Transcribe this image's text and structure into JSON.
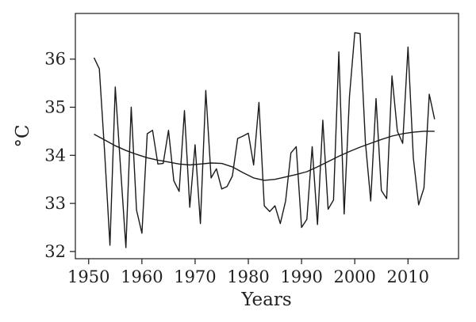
{
  "chart_data": {
    "type": "line",
    "xlabel": "Years",
    "ylabel": "°C",
    "xlim": [
      1947.5,
      2019.5
    ],
    "ylim": [
      31.85,
      36.95
    ],
    "xticks": [
      1950,
      1960,
      1970,
      1980,
      1990,
      2000,
      2010
    ],
    "yticks": [
      32,
      33,
      34,
      35,
      36
    ],
    "grid": false,
    "legend": "none",
    "colors": {
      "line": "#1a1a1a",
      "axis": "#1a1a1a"
    },
    "series": [
      {
        "x": [
          1951,
          1952,
          1953,
          1954,
          1955,
          1956,
          1957,
          1958,
          1959,
          1960,
          1961,
          1962,
          1963,
          1964,
          1965,
          1966,
          1967,
          1968,
          1969,
          1970,
          1971,
          1972,
          1973,
          1974,
          1975,
          1976,
          1977,
          1978,
          1979,
          1980,
          1981,
          1982,
          1983,
          1984,
          1985,
          1986,
          1987,
          1988,
          1989,
          1990,
          1991,
          1992,
          1993,
          1994,
          1995,
          1996,
          1997,
          1998,
          1999,
          2000,
          2001,
          2002,
          2003,
          2004,
          2005,
          2006,
          2007,
          2008,
          2009,
          2010,
          2011,
          2012,
          2013,
          2014,
          2015
        ],
        "values": [
          36.03,
          35.8,
          34.06,
          32.13,
          35.42,
          33.73,
          32.08,
          35.0,
          32.86,
          32.38,
          34.45,
          34.52,
          33.82,
          33.83,
          34.52,
          33.47,
          33.25,
          34.93,
          32.92,
          34.22,
          32.58,
          35.35,
          33.53,
          33.72,
          33.3,
          33.35,
          33.57,
          34.35,
          34.4,
          34.46,
          33.8,
          35.1,
          32.95,
          32.83,
          32.95,
          32.58,
          33.05,
          34.05,
          34.18,
          32.5,
          32.67,
          34.18,
          32.56,
          34.73,
          32.88,
          33.07,
          36.15,
          32.78,
          35.22,
          36.55,
          36.53,
          34.27,
          33.05,
          35.18,
          33.27,
          33.1,
          35.65,
          34.5,
          34.25,
          36.25,
          33.95,
          32.97,
          33.32,
          35.27,
          34.75
        ]
      },
      {
        "x": [
          1951,
          1953,
          1955,
          1957,
          1959,
          1961,
          1963,
          1965,
          1967,
          1969,
          1971,
          1973,
          1975,
          1977,
          1979,
          1981,
          1983,
          1985,
          1987,
          1989,
          1991,
          1993,
          1995,
          1997,
          1999,
          2001,
          2003,
          2005,
          2007,
          2009,
          2011,
          2013,
          2015
        ],
        "values": [
          34.44,
          34.32,
          34.2,
          34.1,
          34.02,
          33.95,
          33.9,
          33.86,
          33.82,
          33.8,
          33.82,
          33.84,
          33.83,
          33.76,
          33.64,
          33.53,
          33.48,
          33.5,
          33.55,
          33.6,
          33.66,
          33.76,
          33.87,
          33.98,
          34.08,
          34.17,
          34.25,
          34.33,
          34.4,
          34.45,
          34.48,
          34.5,
          34.5
        ]
      }
    ]
  }
}
